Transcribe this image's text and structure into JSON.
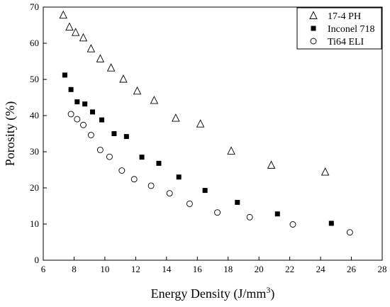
{
  "chart_data": {
    "type": "scatter",
    "title": "",
    "xlabel": "Energy Density (J/mm",
    "xlabel_superscript": "3",
    "xlabel_suffix": ")",
    "ylabel": "Porosity (%)",
    "xlim": [
      6,
      28
    ],
    "ylim": [
      0,
      70
    ],
    "xticks": [
      6,
      8,
      10,
      12,
      14,
      16,
      18,
      20,
      22,
      24,
      26,
      28
    ],
    "yticks": [
      0,
      10,
      20,
      30,
      40,
      50,
      60,
      70
    ],
    "grid": false,
    "legend_position": "top-right",
    "series": [
      {
        "name": "17-4 PH",
        "marker": "triangle-open",
        "color": "#000000",
        "points": [
          [
            7.3,
            67.8
          ],
          [
            7.7,
            64.5
          ],
          [
            8.1,
            63.0
          ],
          [
            8.6,
            61.5
          ],
          [
            9.1,
            58.5
          ],
          [
            9.7,
            55.7
          ],
          [
            10.4,
            53.2
          ],
          [
            11.2,
            50.1
          ],
          [
            12.1,
            46.8
          ],
          [
            13.2,
            44.2
          ],
          [
            14.6,
            39.3
          ],
          [
            16.2,
            37.7
          ],
          [
            18.2,
            30.2
          ],
          [
            20.8,
            26.3
          ],
          [
            24.3,
            24.4
          ]
        ]
      },
      {
        "name": "Inconel 718",
        "marker": "square-filled",
        "color": "#000000",
        "points": [
          [
            7.4,
            51.2
          ],
          [
            7.8,
            47.2
          ],
          [
            8.2,
            43.8
          ],
          [
            8.7,
            43.2
          ],
          [
            9.2,
            41.0
          ],
          [
            9.8,
            38.8
          ],
          [
            10.6,
            35.0
          ],
          [
            11.4,
            34.2
          ],
          [
            12.4,
            28.5
          ],
          [
            13.5,
            26.8
          ],
          [
            14.8,
            23.0
          ],
          [
            16.5,
            19.3
          ],
          [
            18.6,
            16.0
          ],
          [
            21.2,
            12.8
          ],
          [
            24.7,
            10.2
          ]
        ]
      },
      {
        "name": "Ti64 ELI",
        "marker": "circle-open",
        "color": "#000000",
        "points": [
          [
            7.8,
            40.4
          ],
          [
            8.2,
            39.0
          ],
          [
            8.6,
            37.4
          ],
          [
            9.1,
            34.6
          ],
          [
            9.7,
            30.5
          ],
          [
            10.3,
            28.6
          ],
          [
            11.1,
            24.8
          ],
          [
            11.9,
            22.4
          ],
          [
            13.0,
            20.6
          ],
          [
            14.2,
            18.5
          ],
          [
            15.5,
            15.6
          ],
          [
            17.3,
            13.2
          ],
          [
            19.4,
            11.9
          ],
          [
            22.2,
            9.9
          ],
          [
            25.9,
            7.7
          ]
        ]
      }
    ]
  }
}
